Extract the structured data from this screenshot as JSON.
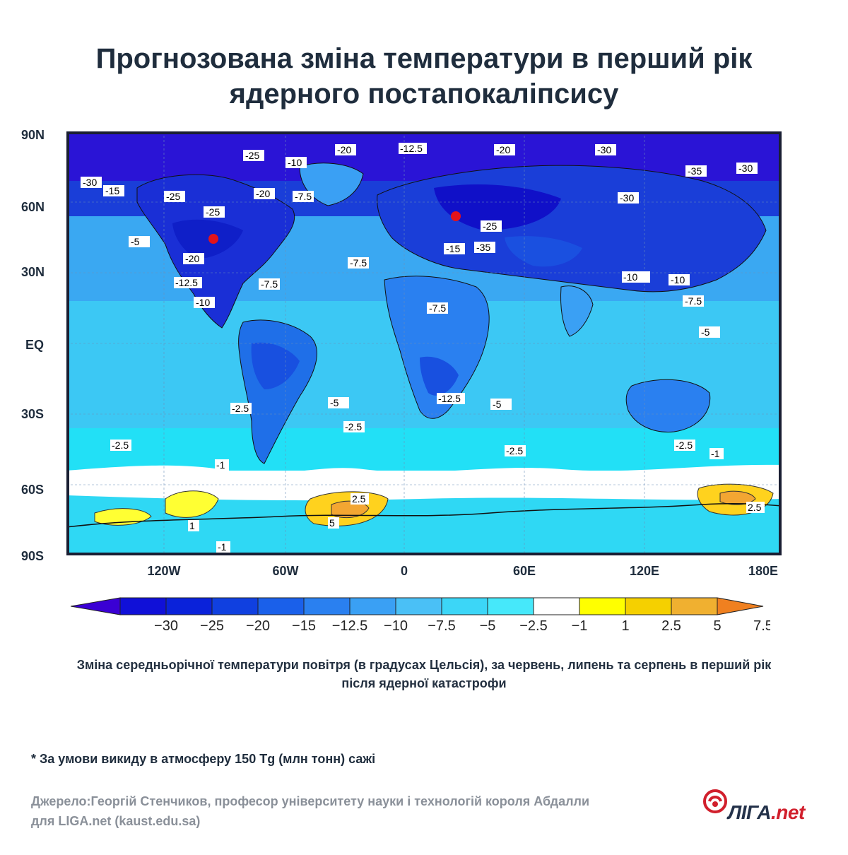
{
  "title": "Прогнозована зміна температури в перший рік ядерного постапокаліпсису",
  "map": {
    "lat_labels": [
      "90N",
      "60N",
      "30N",
      "EQ",
      "30S",
      "60S",
      "90S"
    ],
    "lon_labels": [
      "120W",
      "60W",
      "0",
      "60E",
      "120E",
      "180E"
    ],
    "contour_labels": [
      "-25",
      "-20",
      "-12.5",
      "-10",
      "-15",
      "-20",
      "-30",
      "-25",
      "-30",
      "-20",
      "-30",
      "-35",
      "-30",
      "-15",
      "-20",
      "-10",
      "-7.5",
      "-10",
      "-5",
      "-7.5",
      "-20",
      "-25",
      "-35",
      "-25",
      "-10",
      "-5",
      "-7.5",
      "-12.5",
      "-10",
      "-7.5",
      "-5",
      "-7.5",
      "-5",
      "-10",
      "-12.5",
      "-5",
      "-2.5",
      "-2.5",
      "-2.5",
      "-2.5",
      "-2.5",
      "-1",
      "-1",
      "-1",
      "2.5",
      "5",
      "2.5",
      "1"
    ],
    "colors": {
      "frame": "#1a1f33",
      "marker": "#e3131b"
    }
  },
  "colorbar": {
    "ticks": [
      "−30",
      "−25",
      "−20",
      "−15",
      "−12.5",
      "−10",
      "−7.5",
      "−5",
      "−2.5",
      "−1",
      "1",
      "2.5",
      "5",
      "7.5"
    ],
    "colors": [
      "#3a00d4",
      "#1010d8",
      "#0a22da",
      "#1040e0",
      "#1a60ea",
      "#2a80f0",
      "#3aa0f4",
      "#4ac0f6",
      "#3cd6f7",
      "#46e8fa",
      "#ffffff",
      "#ffff00",
      "#f5d000",
      "#f0b030",
      "#f08020"
    ]
  },
  "caption": "Зміна середньорічної температури повітря (в градусах Цельсія), за червень, липень та серпень в перший рік після ядерної катастрофи",
  "footnote": "* За умови викиду в атмосферу 150 Tg (млн тонн) сажі",
  "source": "Джерело:Георгій Стенчиков, професор університету науки і технологій короля Абдалли для LIGA.net (kaust.edu.sa)",
  "logo": {
    "main": "ЛІГА",
    "suffix": ".net"
  }
}
